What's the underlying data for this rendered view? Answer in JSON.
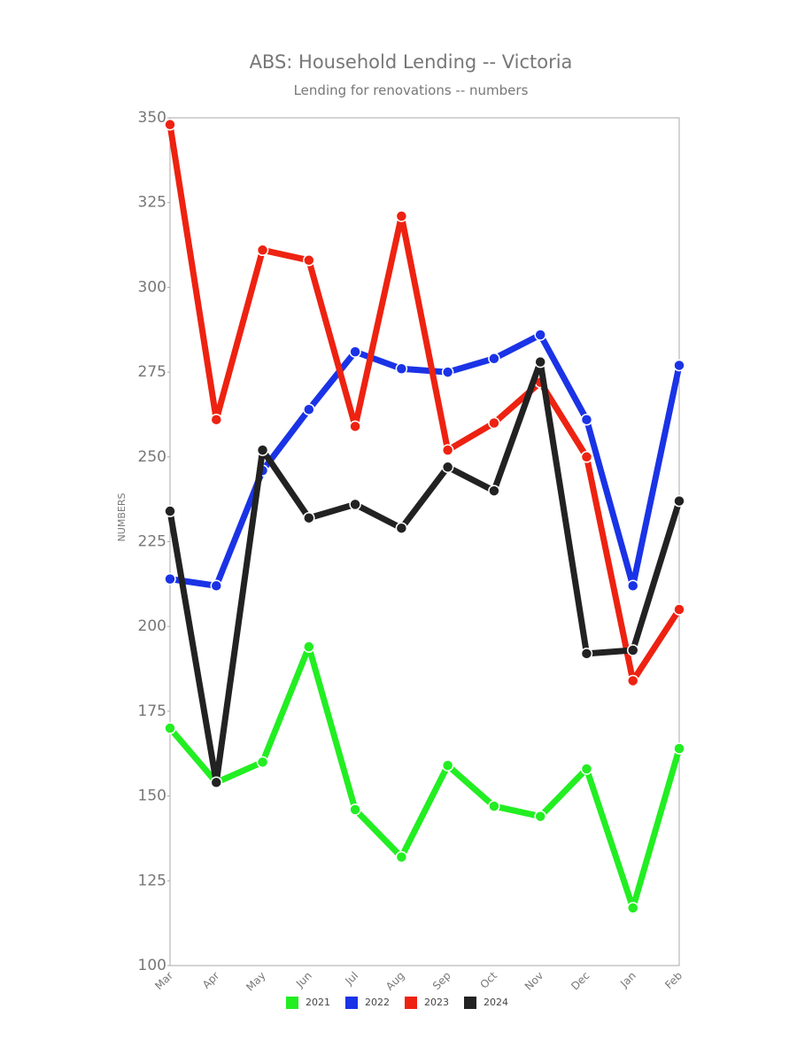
{
  "chart_data": {
    "type": "line",
    "title": "ABS: Household Lending -- Victoria",
    "subtitle": "Lending for renovations -- numbers",
    "y_label": "NUMBERS",
    "categories": [
      "Mar",
      "Apr",
      "May",
      "Jun",
      "Jul",
      "Aug",
      "Sep",
      "Oct",
      "Nov",
      "Dec",
      "Jan",
      "Feb"
    ],
    "series": [
      {
        "name": "2021",
        "color": "#22ee22",
        "values": [
          170,
          154,
          160,
          194,
          146,
          132,
          159,
          147,
          144,
          158,
          117,
          164
        ]
      },
      {
        "name": "2022",
        "color": "#1a33e6",
        "values": [
          214,
          212,
          246,
          264,
          281,
          276,
          275,
          279,
          286,
          261,
          212,
          277
        ]
      },
      {
        "name": "2023",
        "color": "#ee2211",
        "values": [
          348,
          261,
          311,
          308,
          259,
          321,
          252,
          260,
          272,
          250,
          184,
          205
        ]
      },
      {
        "name": "2024",
        "color": "#222222",
        "values": [
          234,
          154,
          252,
          232,
          236,
          229,
          247,
          240,
          278,
          192,
          193,
          237
        ]
      }
    ],
    "ylim": [
      100,
      350
    ],
    "yticks": [
      100,
      125,
      150,
      175,
      200,
      225,
      250,
      275,
      300,
      325,
      350
    ]
  }
}
